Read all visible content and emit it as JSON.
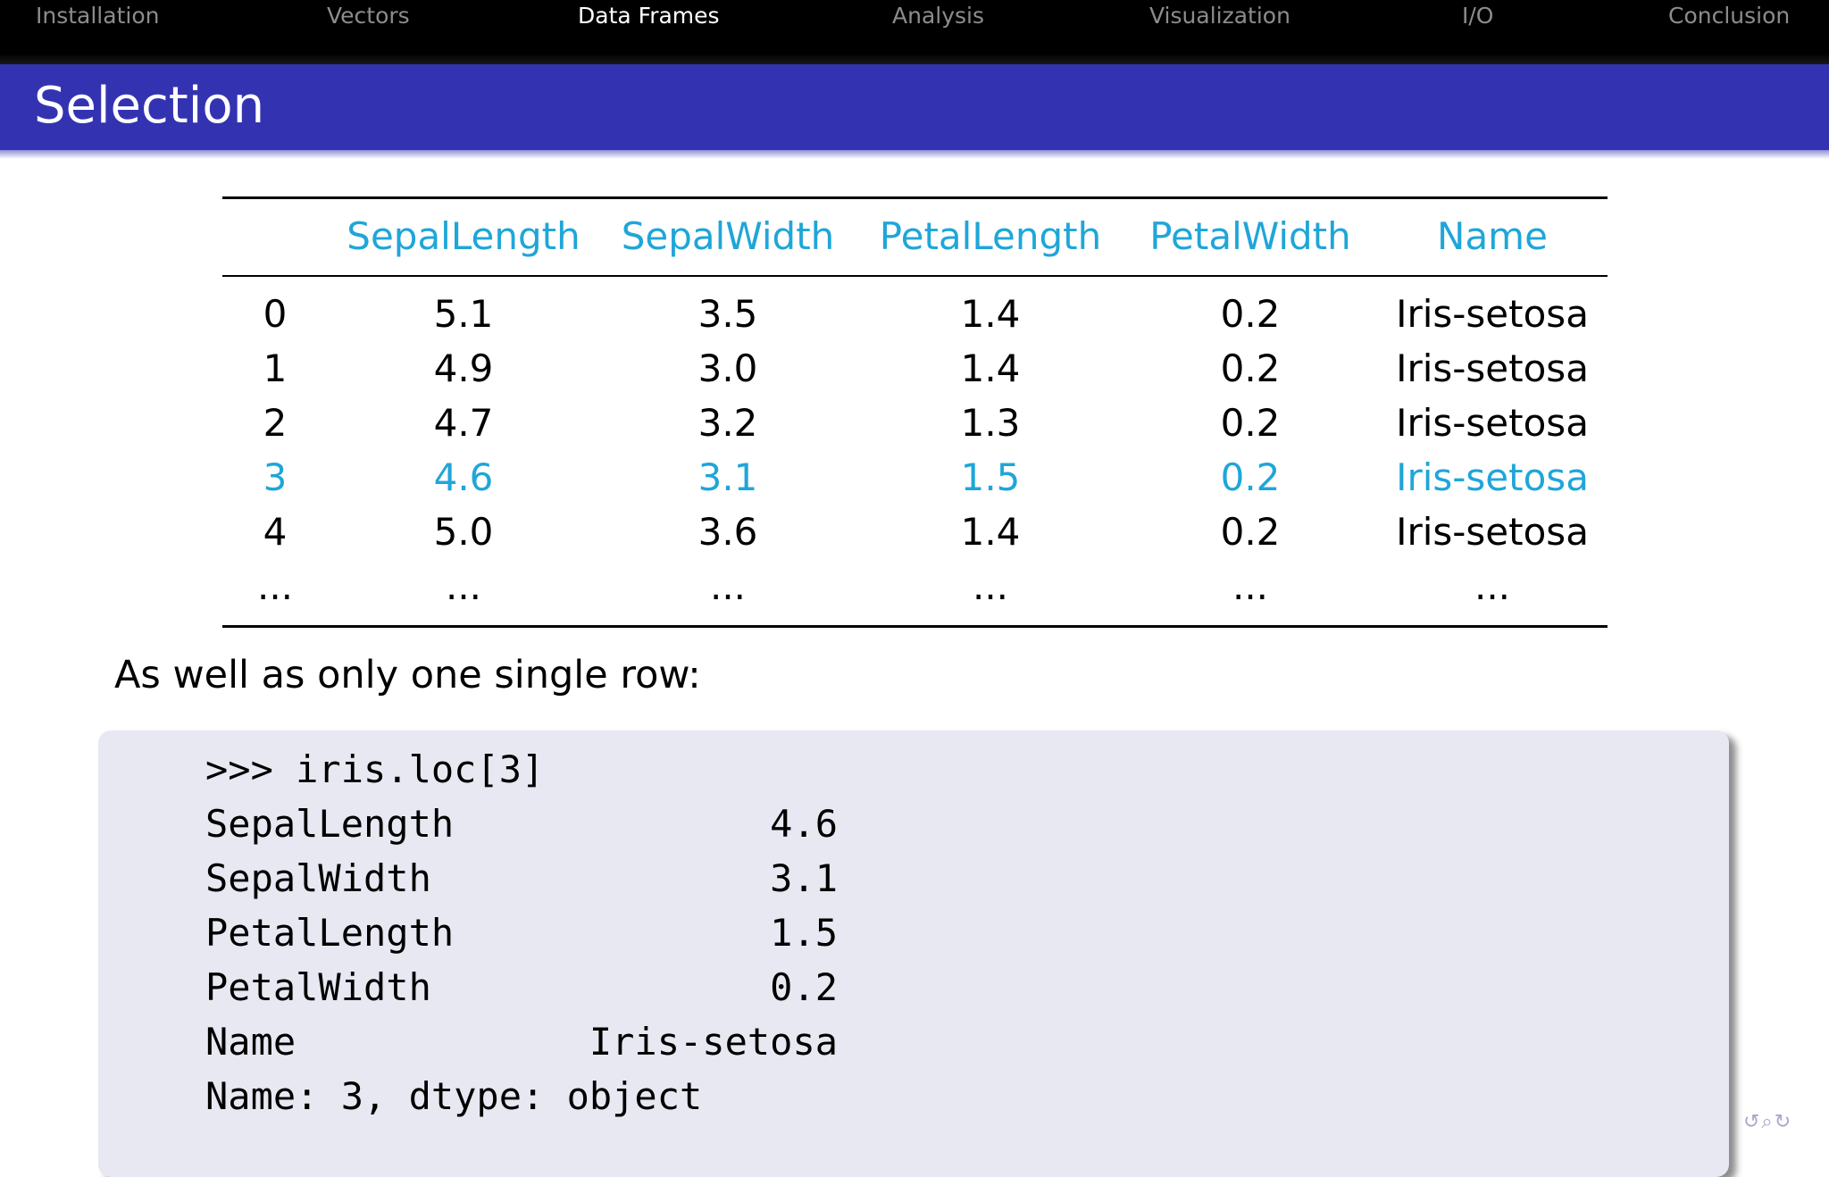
{
  "nav": {
    "items": [
      {
        "label": "Installation",
        "active": false
      },
      {
        "label": "Vectors",
        "active": false
      },
      {
        "label": "Data Frames",
        "active": true
      },
      {
        "label": "Analysis",
        "active": false
      },
      {
        "label": "Visualization",
        "active": false
      },
      {
        "label": "I/O",
        "active": false
      },
      {
        "label": "Conclusion",
        "active": false
      }
    ]
  },
  "frame": {
    "title": "Selection"
  },
  "table": {
    "headers": [
      "",
      "SepalLength",
      "SepalWidth",
      "PetalLength",
      "PetalWidth",
      "Name"
    ],
    "rows": [
      [
        "0",
        "5.1",
        "3.5",
        "1.4",
        "0.2",
        "Iris-setosa"
      ],
      [
        "1",
        "4.9",
        "3.0",
        "1.4",
        "0.2",
        "Iris-setosa"
      ],
      [
        "2",
        "4.7",
        "3.2",
        "1.3",
        "0.2",
        "Iris-setosa"
      ],
      [
        "3",
        "4.6",
        "3.1",
        "1.5",
        "0.2",
        "Iris-setosa"
      ],
      [
        "4",
        "5.0",
        "3.6",
        "1.4",
        "0.2",
        "Iris-setosa"
      ],
      [
        "...",
        "...",
        "...",
        "...",
        "...",
        "..."
      ]
    ],
    "highlighted_row": 3,
    "highlight_color": "#1fa6d8"
  },
  "body": {
    "text": "As well as only one single row:"
  },
  "code": {
    "lines": [
      ">>> iris.loc[3]",
      "SepalLength              4.6",
      "SepalWidth               3.1",
      "PetalLength              1.5",
      "PetalWidth               0.2",
      "Name             Iris-setosa",
      "Name: 3, dtype: object"
    ]
  },
  "beamer_nav": {
    "symbols": "↺⌕↻"
  },
  "colors": {
    "nav_bg": "#000000",
    "nav_inactive": "#8c8c8c",
    "nav_active": "#ffffff",
    "title_bar": "#3333b2",
    "accent": "#1fa6d8",
    "code_bg": "#e8e8f2"
  }
}
